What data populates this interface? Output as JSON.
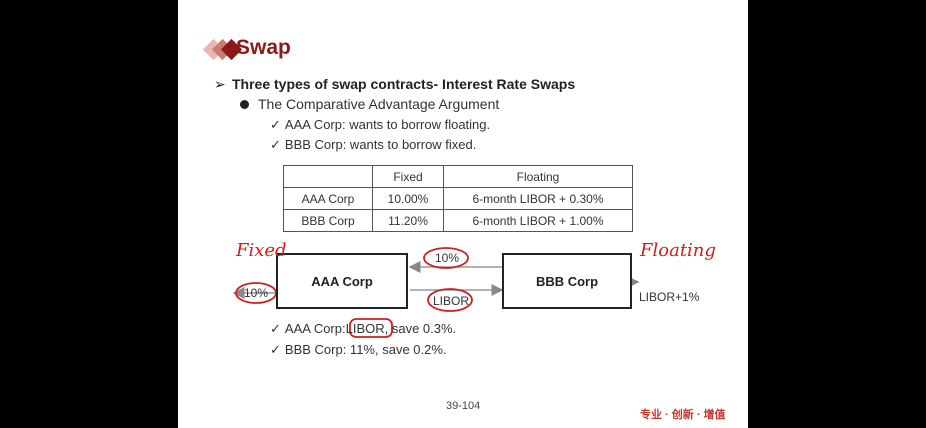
{
  "slide": {
    "title": "Swap",
    "heading": "Three types of swap contracts- Interest Rate Swaps",
    "subheading": "The Comparative Advantage Argument",
    "checks_top": [
      "AAA Corp: wants to borrow floating.",
      "BBB Corp: wants to borrow fixed."
    ],
    "table": {
      "headers": [
        "",
        "Fixed",
        "Floating"
      ],
      "rows": [
        [
          "AAA Corp",
          "10.00%",
          "6-month LIBOR + 0.30%"
        ],
        [
          "BBB Corp",
          "11.20%",
          "6-month LIBOR + 1.00%"
        ]
      ]
    },
    "diagram": {
      "left_box": "AAA Corp",
      "right_box": "BBB Corp",
      "top_flow": "10%",
      "bottom_flow": "LIBOR",
      "left_out": "10%",
      "right_out": "LIBOR+1%"
    },
    "handwriting": {
      "left": "Fixed",
      "right": "Floating"
    },
    "checks_bottom": {
      "aaa_prefix": "AAA Corp:",
      "aaa_libor": "LIBOR",
      "aaa_suffix": ", save 0.3%.",
      "bbb": "BBB Corp: 11%, save 0.2%."
    },
    "page_number": "39-104",
    "brand": "专业 · 创新 · 增值"
  },
  "colors": {
    "title": "#8b1a1a",
    "annotation": "#cc1f1f"
  }
}
